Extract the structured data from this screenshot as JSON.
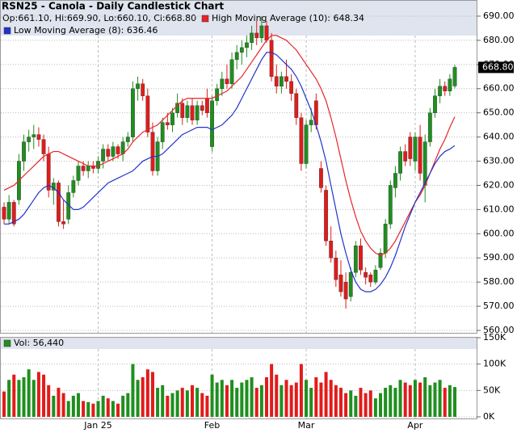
{
  "chart_data": [
    {
      "type": "candlestick",
      "title": "RSN25 - Canola - Daily Candlestick Chart",
      "ohlc_label": "Op:661.10, Hi:669.90, Lo:660.10, Cl:668.80",
      "categories": [
        null,
        null,
        null,
        null,
        null,
        null,
        null,
        null,
        null,
        null,
        null,
        null,
        null,
        null,
        null,
        null,
        null,
        null,
        null,
        "Jan 25",
        null,
        null,
        null,
        null,
        null,
        null,
        null,
        null,
        null,
        null,
        null,
        null,
        null,
        null,
        null,
        null,
        null,
        null,
        null,
        null,
        null,
        null,
        "Feb",
        null,
        null,
        null,
        null,
        null,
        null,
        null,
        null,
        null,
        null,
        null,
        null,
        null,
        null,
        null,
        null,
        null,
        null,
        "Mar",
        null,
        null,
        null,
        null,
        null,
        null,
        null,
        null,
        null,
        null,
        null,
        null,
        null,
        null,
        null,
        null,
        null,
        null,
        null,
        null,
        null,
        "Apr",
        null,
        null,
        null,
        null,
        null,
        null,
        null,
        null
      ],
      "open": [
        611,
        606,
        613,
        614,
        630,
        638,
        640,
        641,
        639,
        633,
        618,
        621,
        605,
        606,
        617,
        622,
        628,
        626,
        628,
        627,
        630,
        635,
        632,
        636,
        633,
        638,
        640,
        660,
        662,
        657,
        642,
        626,
        638,
        646,
        645,
        650,
        654,
        648,
        653,
        647,
        653,
        656,
        636,
        655,
        660,
        664,
        662,
        672,
        675,
        677,
        679,
        683,
        681,
        686,
        680,
        665,
        661,
        665,
        663,
        658,
        648,
        629,
        645,
        655,
        627,
        618,
        597,
        590,
        583,
        580,
        574,
        584,
        595,
        584,
        583,
        580,
        586,
        592,
        604,
        619,
        625,
        634,
        640,
        630,
        640,
        620,
        638,
        650,
        657,
        661,
        659,
        661.1
      ],
      "high": [
        613,
        616,
        614,
        633,
        641,
        643,
        645,
        644,
        641,
        636,
        623,
        622,
        614,
        620,
        624,
        630,
        630,
        630,
        630,
        632,
        637,
        637,
        638,
        637,
        640,
        642,
        663,
        665,
        664,
        660,
        646,
        640,
        648,
        650,
        652,
        658,
        656,
        655,
        656,
        655,
        655,
        660,
        657,
        662,
        667,
        670,
        675,
        678,
        680,
        682,
        686,
        688,
        690,
        688,
        683,
        670,
        667,
        672,
        666,
        660,
        650,
        647,
        652,
        658,
        630,
        620,
        603,
        593,
        589,
        584,
        586,
        597,
        598,
        586,
        584,
        587,
        594,
        606,
        622,
        628,
        636,
        637,
        642,
        642,
        645,
        641,
        652,
        660,
        664,
        663,
        666,
        669.9
      ],
      "low": [
        604,
        604,
        603,
        612,
        626,
        634,
        635,
        636,
        630,
        615,
        612,
        603,
        602,
        604,
        615,
        620,
        624,
        623,
        625,
        625,
        627,
        630,
        630,
        631,
        630,
        636,
        638,
        655,
        655,
        640,
        624,
        624,
        635,
        643,
        642,
        648,
        645,
        646,
        645,
        645,
        649,
        648,
        634,
        653,
        657,
        660,
        660,
        668,
        670,
        673,
        676,
        678,
        679,
        679,
        663,
        658,
        658,
        660,
        655,
        645,
        626,
        627,
        642,
        643,
        617,
        595,
        588,
        578,
        574,
        569,
        572,
        582,
        583,
        579,
        578,
        579,
        585,
        590,
        602,
        615,
        622,
        628,
        628,
        626,
        622,
        613,
        636,
        648,
        654,
        657,
        657,
        660.1
      ],
      "close": [
        606,
        613,
        604,
        630,
        638,
        640,
        641,
        639,
        633,
        618,
        621,
        605,
        604,
        617,
        622,
        628,
        626,
        628,
        627,
        630,
        635,
        632,
        636,
        633,
        638,
        640,
        660,
        662,
        657,
        642,
        626,
        638,
        646,
        645,
        650,
        654,
        648,
        653,
        647,
        653,
        651,
        650,
        655,
        660,
        664,
        662,
        672,
        675,
        677,
        679,
        683,
        681,
        686,
        680,
        665,
        661,
        665,
        663,
        658,
        648,
        629,
        645,
        647,
        645,
        619,
        597,
        590,
        581,
        576,
        573,
        584,
        595,
        585,
        582,
        580,
        585,
        592,
        604,
        620,
        625,
        634,
        630,
        631,
        640,
        625,
        638,
        650,
        657,
        661,
        659,
        664,
        668.8
      ],
      "up_color": "#1f8f1f",
      "down_color": "#e21b1b",
      "series": [
        {
          "name": "High Moving Average (10): 648.34",
          "color": "#e8242a",
          "values": [
            618,
            619,
            620,
            622,
            624,
            626,
            628,
            630,
            632,
            633,
            634,
            634,
            633,
            632,
            631,
            630,
            629,
            628,
            628,
            628,
            629,
            630,
            631,
            632,
            633,
            635,
            638,
            640,
            642,
            643,
            644,
            645,
            647,
            649,
            651,
            653,
            655,
            656,
            656,
            656,
            656,
            656,
            656,
            657,
            658,
            659,
            661,
            663,
            665,
            668,
            671,
            674,
            677,
            680,
            682,
            682,
            681,
            680,
            678,
            676,
            673,
            670,
            667,
            664,
            660,
            655,
            648,
            640,
            631,
            622,
            614,
            607,
            601,
            597,
            594,
            592,
            591,
            592,
            594,
            597,
            601,
            605,
            609,
            613,
            616,
            620,
            625,
            630,
            635,
            639,
            644,
            648.34
          ]
        },
        {
          "name": "Low Moving Average (8): 636.46",
          "color": "#2233cc",
          "values": [
            604,
            604,
            605,
            606,
            608,
            611,
            614,
            617,
            619,
            620,
            619,
            617,
            614,
            612,
            610,
            610,
            611,
            613,
            615,
            617,
            619,
            621,
            622,
            623,
            624,
            625,
            626,
            628,
            630,
            631,
            632,
            632,
            633,
            635,
            637,
            639,
            641,
            642,
            643,
            644,
            644,
            644,
            643,
            644,
            645,
            647,
            649,
            652,
            656,
            660,
            664,
            668,
            672,
            675,
            675,
            674,
            672,
            670,
            668,
            665,
            661,
            656,
            651,
            645,
            638,
            630,
            620,
            610,
            600,
            592,
            585,
            580,
            577,
            576,
            576,
            577,
            579,
            582,
            586,
            591,
            597,
            603,
            608,
            613,
            617,
            621,
            625,
            629,
            632,
            634,
            635,
            636.46
          ]
        }
      ],
      "ylim": [
        559,
        694
      ],
      "yticks": [
        {
          "value": 560,
          "label": "560.00"
        },
        {
          "value": 570,
          "label": "570.00"
        },
        {
          "value": 580,
          "label": "580.00"
        },
        {
          "value": 590,
          "label": "590.00"
        },
        {
          "value": 600,
          "label": "600.00"
        },
        {
          "value": 610,
          "label": "610.00"
        },
        {
          "value": 620,
          "label": "620.00"
        },
        {
          "value": 630,
          "label": "630.00"
        },
        {
          "value": 640,
          "label": "640.00"
        },
        {
          "value": 650,
          "label": "650.00"
        },
        {
          "value": 660,
          "label": "660.00"
        },
        {
          "value": 670,
          "label": "670.00"
        },
        {
          "value": 680,
          "label": "680.00"
        },
        {
          "value": 690,
          "label": "690.00"
        }
      ],
      "last_price": {
        "value": 668.8,
        "label": "668.80"
      },
      "grid": true
    },
    {
      "type": "bar",
      "series": [
        {
          "name": "Vol: 56,440",
          "color": "#1f8f1f",
          "values": [
            48000,
            70000,
            80000,
            70000,
            75000,
            90000,
            70000,
            85000,
            80000,
            60000,
            40000,
            55000,
            45000,
            30000,
            40000,
            45000,
            30000,
            28000,
            25000,
            30000,
            40000,
            35000,
            30000,
            25000,
            40000,
            45000,
            100000,
            70000,
            75000,
            90000,
            85000,
            55000,
            60000,
            40000,
            45000,
            50000,
            55000,
            50000,
            60000,
            55000,
            45000,
            40000,
            80000,
            65000,
            70000,
            60000,
            70000,
            55000,
            65000,
            70000,
            75000,
            55000,
            60000,
            75000,
            100000,
            80000,
            60000,
            70000,
            60000,
            65000,
            100000,
            70000,
            55000,
            75000,
            65000,
            85000,
            70000,
            60000,
            55000,
            45000,
            50000,
            40000,
            55000,
            45000,
            50000,
            35000,
            45000,
            55000,
            60000,
            55000,
            70000,
            65000,
            60000,
            70000,
            65000,
            75000,
            60000,
            65000,
            70000,
            55000,
            60000,
            56440
          ]
        }
      ],
      "ylim": [
        0,
        150000
      ],
      "yticks": [
        {
          "value": 0,
          "label": "0K"
        },
        {
          "value": 50000,
          "label": "50K"
        },
        {
          "value": 100000,
          "label": "100K"
        },
        {
          "value": 150000,
          "label": "150K"
        }
      ],
      "grid": true
    }
  ]
}
